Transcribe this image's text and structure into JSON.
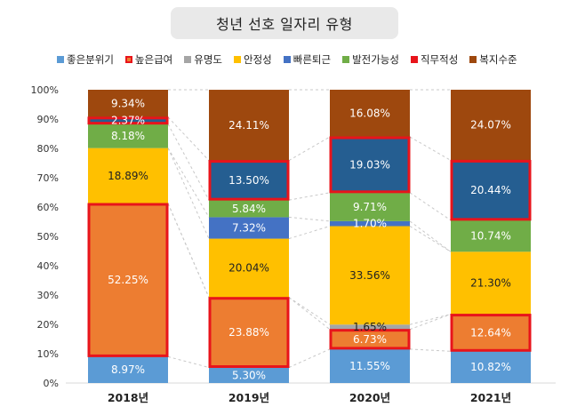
{
  "chart_data": {
    "type": "bar",
    "stacked": true,
    "title": "청년 선호 일자리 유형",
    "categories": [
      "2018년",
      "2019년",
      "2020년",
      "2021년"
    ],
    "ylim": [
      0,
      100
    ],
    "yticks": [
      "0%",
      "10%",
      "20%",
      "30%",
      "40%",
      "50%",
      "60%",
      "70%",
      "80%",
      "90%",
      "100%"
    ],
    "series": [
      {
        "name": "좋은분위기",
        "color": "#5b9bd5",
        "values": [
          8.97,
          5.3,
          11.55,
          10.82
        ],
        "labels": [
          "8.97%",
          "5.30%",
          "11.55%",
          "10.82%"
        ]
      },
      {
        "name": "높은급여",
        "color": "#ed7d31",
        "values": [
          52.25,
          23.88,
          6.73,
          12.64
        ],
        "labels": [
          "52.25%",
          "23.88%",
          "6.73%",
          "12.64%"
        ]
      },
      {
        "name": "유명도",
        "color": "#a5a5a5",
        "values": [
          0.0,
          0.0,
          1.65,
          0.0
        ],
        "labels": [
          "",
          "",
          "1.65%",
          ""
        ]
      },
      {
        "name": "안정성",
        "color": "#ffc000",
        "values": [
          18.89,
          20.04,
          33.56,
          21.3
        ],
        "labels": [
          "18.89%",
          "20.04%",
          "33.56%",
          "21.30%"
        ]
      },
      {
        "name": "빠른퇴근",
        "color": "#4472c4",
        "values": [
          0.0,
          7.32,
          1.7,
          0.0
        ],
        "labels": [
          "",
          "7.32%",
          "1.70%",
          ""
        ]
      },
      {
        "name": "발전가능성",
        "color": "#70ad47",
        "values": [
          8.18,
          5.84,
          9.71,
          10.74
        ],
        "labels": [
          "8.18%",
          "5.84%",
          "9.71%",
          "10.74%"
        ]
      },
      {
        "name": "직무적성",
        "color": "#255e91",
        "values": [
          2.37,
          13.5,
          19.03,
          20.44
        ],
        "labels": [
          "2.37%",
          "13.50%",
          "19.03%",
          "20.44%"
        ]
      },
      {
        "name": "복지수준",
        "color": "#9e480e",
        "values": [
          9.34,
          24.11,
          16.08,
          24.07
        ],
        "labels": [
          "9.34%",
          "24.11%",
          "16.08%",
          "24.07%"
        ]
      }
    ],
    "legend": [
      {
        "label": "좋은분위기",
        "color": "#5b9bd5",
        "outlined": false
      },
      {
        "label": "높은급여",
        "color": "#ed7d31",
        "outlined": true
      },
      {
        "label": "유명도",
        "color": "#a5a5a5",
        "outlined": false
      },
      {
        "label": "안정성",
        "color": "#ffc000",
        "outlined": false
      },
      {
        "label": "빠른퇴근",
        "color": "#4472c4",
        "outlined": false
      },
      {
        "label": "발전가능성",
        "color": "#70ad47",
        "outlined": false
      },
      {
        "label": "직무적성",
        "color": "#e8141b",
        "outlined": false
      },
      {
        "label": "복지수준",
        "color": "#9e480e",
        "outlined": false
      }
    ],
    "highlights": [
      {
        "category": 0,
        "series": 1
      },
      {
        "category": 0,
        "series": 6
      },
      {
        "category": 1,
        "series": 1
      },
      {
        "category": 1,
        "series": 6
      },
      {
        "category": 2,
        "series": 1
      },
      {
        "category": 2,
        "series": 6
      },
      {
        "category": 3,
        "series": 1
      },
      {
        "category": 3,
        "series": 6
      }
    ],
    "highlight_color": "#e8141b",
    "legend_position": "top",
    "grid": false
  }
}
